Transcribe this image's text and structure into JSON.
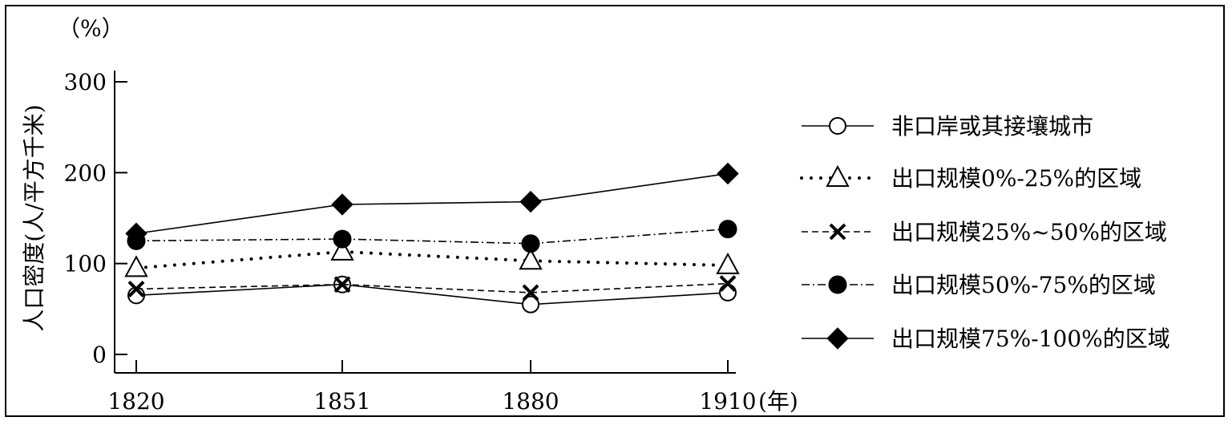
{
  "chart_data": {
    "type": "line",
    "title": "",
    "y_unit": "（%）",
    "ylabel": "人口密度(人/平方千米)",
    "x_unit": "(年)",
    "x": [
      "1820",
      "1851",
      "1880",
      "1910"
    ],
    "y_ticks": [
      0,
      100,
      200,
      300
    ],
    "ylim": [
      0,
      300
    ],
    "legend_position": "right",
    "series": [
      {
        "name": "非口岸或其接壤城市",
        "marker": "circle-open",
        "line": "solid",
        "values": [
          65,
          77,
          55,
          68
        ]
      },
      {
        "name": "出口规模0%-25%的区域",
        "marker": "triangle-open",
        "line": "dotted",
        "values": [
          95,
          113,
          103,
          98
        ]
      },
      {
        "name": "出口规模25%~50%的区域",
        "marker": "cross",
        "line": "dashed",
        "values": [
          72,
          77,
          68,
          78
        ]
      },
      {
        "name": "出口规模50%-75%的区域",
        "marker": "circle-filled",
        "line": "dashdot",
        "values": [
          125,
          127,
          122,
          138
        ]
      },
      {
        "name": "出口规模75%-100%的区域",
        "marker": "diamond-filled",
        "line": "solid",
        "values": [
          133,
          165,
          168,
          199
        ]
      }
    ]
  }
}
